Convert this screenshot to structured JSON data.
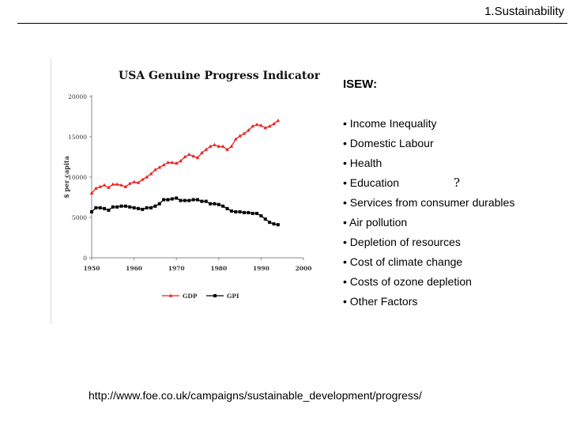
{
  "slide": {
    "title": "1.Sustainability",
    "panel_heading": "ISEW:",
    "bullets": [
      "• Income Inequality",
      "• Domestic Labour",
      "• Health",
      "• Education",
      "• Services from consumer durables",
      "• Air pollution",
      "• Depletion of resources",
      "• Cost of climate change",
      "• Costs of ozone depletion",
      "• Other Factors"
    ],
    "question_mark": "?",
    "source_url": "http://www.foe.co.uk/campaigns/sustainable_development/progress/"
  },
  "chart_data": {
    "type": "line",
    "title": "USA Genuine Progress Indicator",
    "xlabel": "",
    "ylabel": "$ per capita",
    "xlim": [
      1950,
      2000
    ],
    "ylim": [
      0,
      20000
    ],
    "x_ticks": [
      "1950",
      "1960",
      "1970",
      "1980",
      "1990",
      "2000"
    ],
    "y_ticks": [
      "0",
      "5000",
      "10000",
      "15000",
      "20000"
    ],
    "grid": false,
    "legend_position": "bottom",
    "x": [
      1950,
      1951,
      1952,
      1953,
      1954,
      1955,
      1956,
      1957,
      1958,
      1959,
      1960,
      1961,
      1962,
      1963,
      1964,
      1965,
      1966,
      1967,
      1968,
      1969,
      1970,
      1971,
      1972,
      1973,
      1974,
      1975,
      1976,
      1977,
      1978,
      1979,
      1980,
      1981,
      1982,
      1983,
      1984,
      1985,
      1986,
      1987,
      1988,
      1989,
      1990,
      1991,
      1992,
      1993,
      1994
    ],
    "series": [
      {
        "name": "GDP",
        "color": "#e8231f",
        "marker": "triangle",
        "values": [
          8000,
          8600,
          8800,
          9000,
          8700,
          9100,
          9100,
          9000,
          8800,
          9200,
          9400,
          9300,
          9700,
          10000,
          10400,
          10900,
          11200,
          11500,
          11800,
          11800,
          11700,
          12000,
          12500,
          12800,
          12600,
          12400,
          13000,
          13400,
          13800,
          14000,
          13800,
          13800,
          13400,
          13800,
          14700,
          15100,
          15400,
          15800,
          16300,
          16500,
          16400,
          16100,
          16300,
          16600,
          17000
        ]
      },
      {
        "name": "GPI",
        "color": "#000000",
        "marker": "square",
        "values": [
          5700,
          6200,
          6200,
          6100,
          5900,
          6300,
          6300,
          6400,
          6400,
          6300,
          6200,
          6100,
          6000,
          6200,
          6200,
          6400,
          6700,
          7200,
          7200,
          7300,
          7400,
          7100,
          7100,
          7100,
          7200,
          7200,
          7000,
          7000,
          6700,
          6700,
          6600,
          6400,
          6100,
          5800,
          5700,
          5700,
          5600,
          5600,
          5500,
          5500,
          5200,
          4800,
          4400,
          4200,
          4100
        ]
      }
    ]
  }
}
